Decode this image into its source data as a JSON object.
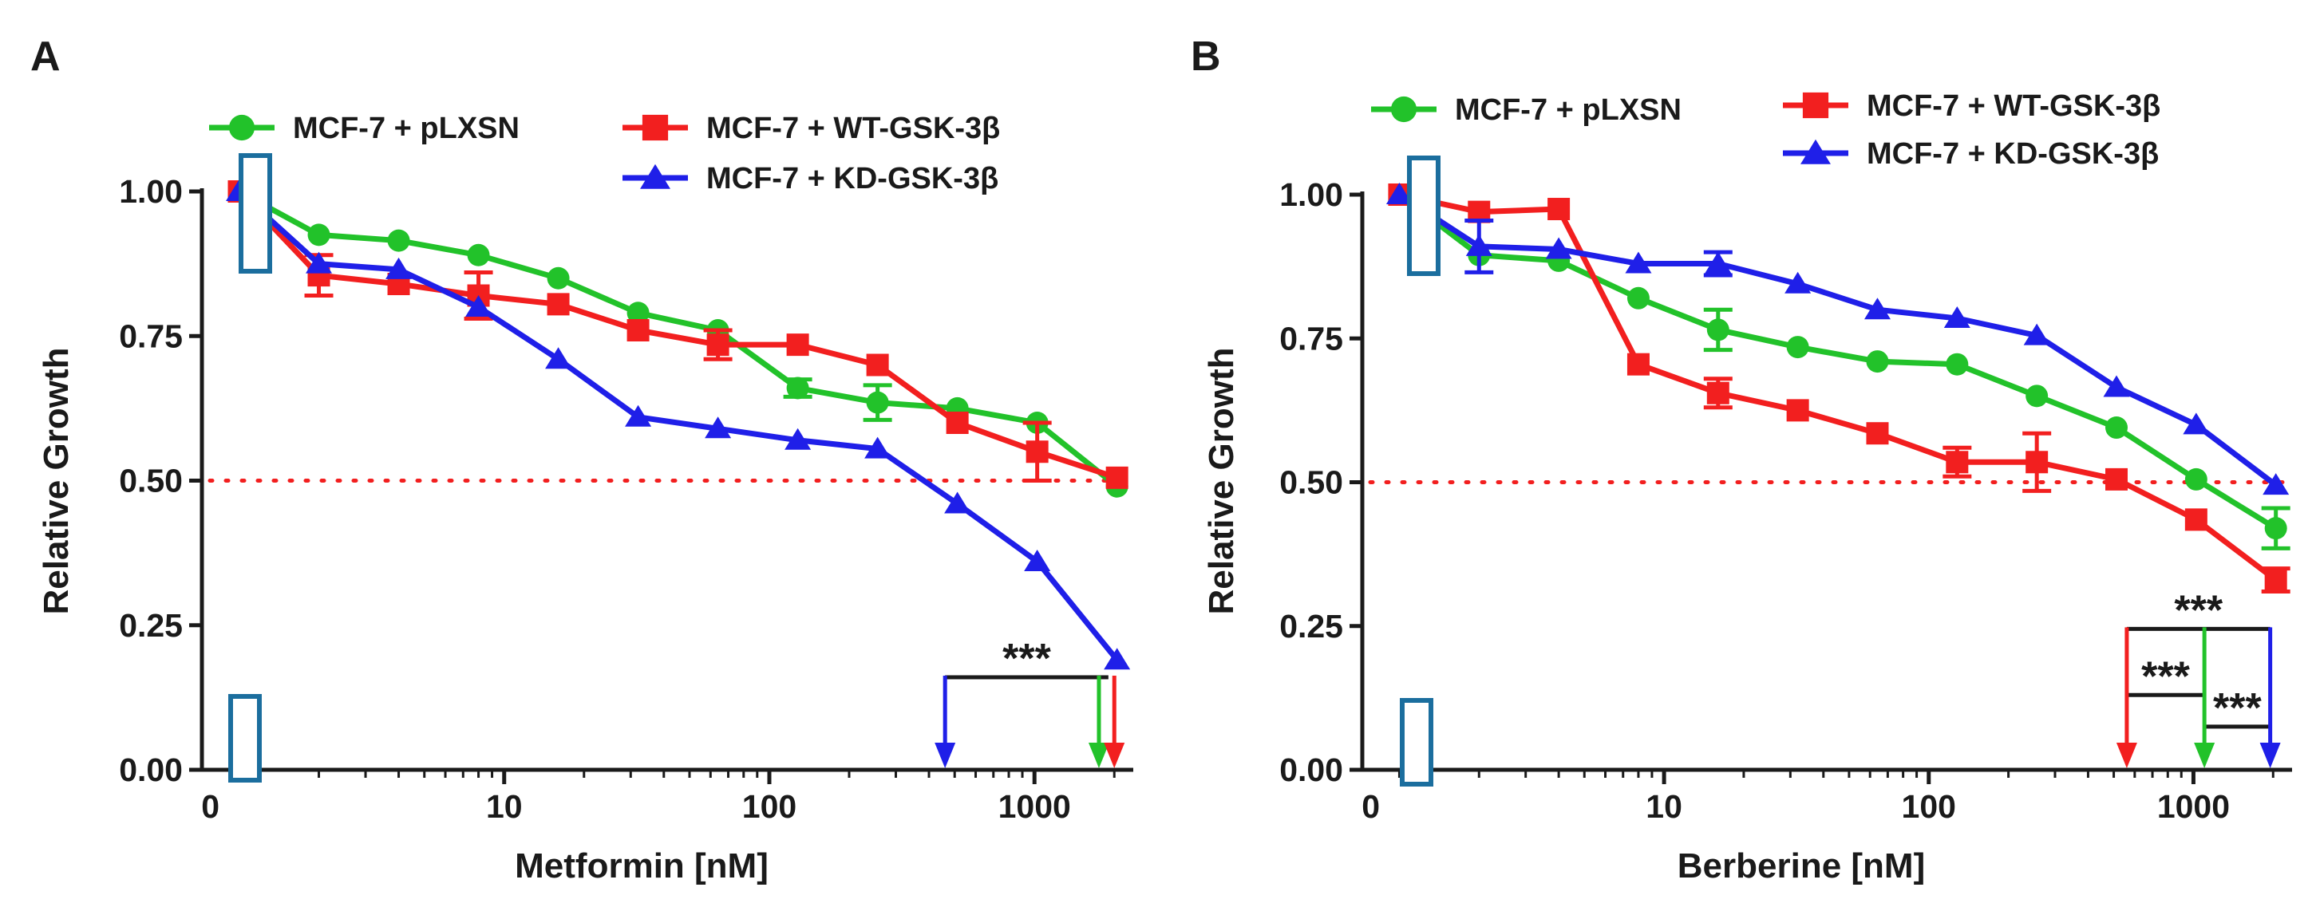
{
  "figure": {
    "panels": [
      "A",
      "B"
    ]
  },
  "colors": {
    "pLXSN": "#22c22a",
    "WT": "#f21f1f",
    "KD": "#1f1fe8",
    "threshold": "#f21f1f",
    "box": "#1b6e9e",
    "axis": "#1a1a1a"
  },
  "chart_data": [
    {
      "type": "line",
      "panel": "A",
      "xlabel": "Metformin [nM]",
      "ylabel": "Relative Growth",
      "xscale": "log",
      "xlim": [
        0.75,
        2200
      ],
      "ylim": [
        0,
        1.0
      ],
      "x_ticks": [
        {
          "value": 0.78,
          "label": "0"
        },
        {
          "value": 10,
          "label": "10"
        },
        {
          "value": 100,
          "label": "100"
        },
        {
          "value": 1000,
          "label": "1000"
        }
      ],
      "y_ticks": [
        {
          "value": 0.0,
          "label": "0.00"
        },
        {
          "value": 0.25,
          "label": "0.25"
        },
        {
          "value": 0.5,
          "label": "0.50"
        },
        {
          "value": 0.75,
          "label": "0.75"
        },
        {
          "value": 1.0,
          "label": "1.00"
        }
      ],
      "x": [
        1,
        2,
        4,
        8,
        16,
        32,
        64,
        128,
        256,
        512,
        1024,
        2048
      ],
      "series": [
        {
          "key": "pLXSN",
          "name": "MCF-7 + pLXSN",
          "marker": "circle",
          "values": [
            1.0,
            0.925,
            0.915,
            0.89,
            0.85,
            0.79,
            0.76,
            0.66,
            0.635,
            0.625,
            0.6,
            0.49
          ],
          "errors": [
            0,
            0,
            0,
            0,
            0,
            0,
            0,
            0.015,
            0.03,
            0,
            0,
            0
          ]
        },
        {
          "key": "WT",
          "name": "MCF-7 + WT-GSK-3β",
          "marker": "square",
          "values": [
            1.0,
            0.855,
            0.84,
            0.82,
            0.805,
            0.76,
            0.735,
            0.735,
            0.7,
            0.6,
            0.55,
            0.505
          ],
          "errors": [
            0,
            0.035,
            0,
            0.04,
            0,
            0,
            0.025,
            0,
            0,
            0,
            0.05,
            0
          ]
        },
        {
          "key": "KD",
          "name": "MCF-7 + KD-GSK-3β",
          "marker": "triangle",
          "values": [
            1.0,
            0.875,
            0.865,
            0.8,
            0.71,
            0.61,
            0.59,
            0.57,
            0.555,
            0.46,
            0.36,
            0.19
          ],
          "errors": [
            0,
            0,
            0,
            0,
            0,
            0,
            0,
            0,
            0,
            0,
            0,
            0
          ]
        }
      ],
      "threshold": 0.5,
      "ic50_arrows": [
        {
          "series": "KD",
          "x": 460
        },
        {
          "series": "pLXSN",
          "x": 1750
        },
        {
          "series": "WT",
          "x": 2000
        }
      ],
      "significance": [
        {
          "x1": 460,
          "x2": 1900,
          "y": 0.16,
          "label": "***"
        }
      ],
      "legend": [
        {
          "key": "pLXSN",
          "name": "MCF-7 + pLXSN"
        },
        {
          "key": "WT",
          "name": "MCF-7 + WT-GSK-3β"
        },
        {
          "key": "KD",
          "name": "MCF-7 + KD-GSK-3β"
        }
      ]
    },
    {
      "type": "line",
      "panel": "B",
      "xlabel": "Berberine [nM]",
      "ylabel": "Relative Growth",
      "xscale": "log",
      "xlim": [
        0.75,
        2200
      ],
      "ylim": [
        0,
        1.0
      ],
      "x_ticks": [
        {
          "value": 0.78,
          "label": "0"
        },
        {
          "value": 10,
          "label": "10"
        },
        {
          "value": 100,
          "label": "100"
        },
        {
          "value": 1000,
          "label": "1000"
        }
      ],
      "y_ticks": [
        {
          "value": 0.0,
          "label": "0.00"
        },
        {
          "value": 0.25,
          "label": "0.25"
        },
        {
          "value": 0.5,
          "label": "0.50"
        },
        {
          "value": 0.75,
          "label": "0.75"
        },
        {
          "value": 1.0,
          "label": "1.00"
        }
      ],
      "x": [
        1,
        2,
        4,
        8,
        16,
        32,
        64,
        128,
        256,
        512,
        1024,
        2048
      ],
      "series": [
        {
          "key": "pLXSN",
          "name": "MCF-7 + pLXSN",
          "marker": "circle",
          "values": [
            1.0,
            0.895,
            0.885,
            0.82,
            0.765,
            0.735,
            0.71,
            0.705,
            0.65,
            0.595,
            0.505,
            0.42
          ],
          "errors": [
            0,
            0,
            0,
            0,
            0.035,
            0,
            0,
            0,
            0,
            0,
            0,
            0.035
          ]
        },
        {
          "key": "WT",
          "name": "MCF-7 + WT-GSK-3β",
          "marker": "square",
          "values": [
            1.0,
            0.97,
            0.975,
            0.705,
            0.655,
            0.625,
            0.585,
            0.535,
            0.535,
            0.505,
            0.435,
            0.33
          ],
          "errors": [
            0,
            0,
            0,
            0,
            0.025,
            0,
            0,
            0.025,
            0.05,
            0,
            0,
            0.02
          ]
        },
        {
          "key": "KD",
          "name": "MCF-7 + KD-GSK-3β",
          "marker": "triangle",
          "values": [
            1.0,
            0.91,
            0.905,
            0.88,
            0.88,
            0.845,
            0.8,
            0.785,
            0.755,
            0.665,
            0.6,
            0.495
          ],
          "errors": [
            0,
            0.045,
            0,
            0,
            0.02,
            0,
            0,
            0,
            0,
            0,
            0,
            0
          ]
        }
      ],
      "threshold": 0.5,
      "ic50_arrows": [
        {
          "series": "WT",
          "x": 560
        },
        {
          "series": "pLXSN",
          "x": 1100
        },
        {
          "series": "KD",
          "x": 1950
        }
      ],
      "significance": [
        {
          "x1": 560,
          "x2": 1950,
          "y": 0.245,
          "label": "***"
        },
        {
          "x1": 560,
          "x2": 1100,
          "y": 0.13,
          "label": "***"
        },
        {
          "x1": 1100,
          "x2": 1950,
          "y": 0.075,
          "label": "***"
        }
      ],
      "legend": [
        {
          "key": "pLXSN",
          "name": "MCF-7 + pLXSN"
        },
        {
          "key": "WT",
          "name": "MCF-7 + WT-GSK-3β"
        },
        {
          "key": "KD",
          "name": "MCF-7 + KD-GSK-3β"
        }
      ]
    }
  ]
}
